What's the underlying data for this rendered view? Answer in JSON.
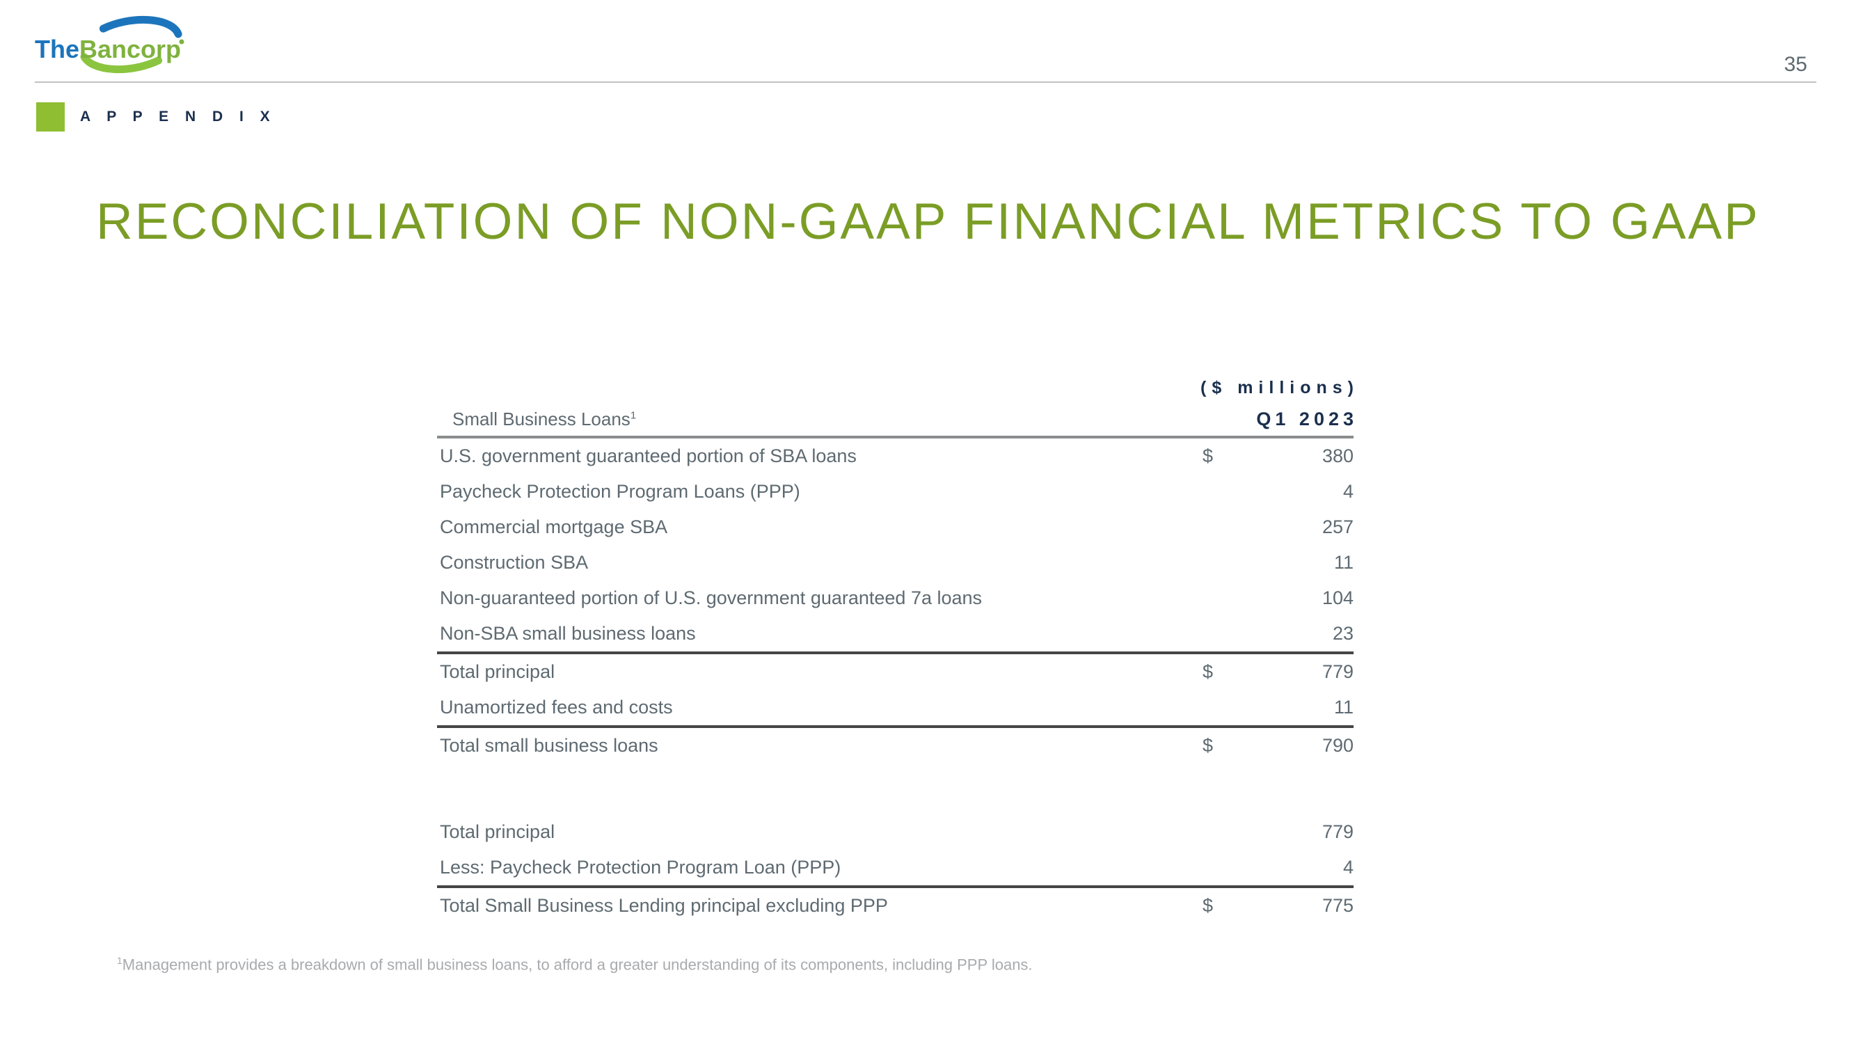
{
  "colors": {
    "accent_green": "#8fbe33",
    "logo_green": "#7fb23e",
    "logo_blue": "#1c75bc",
    "olive": "#7b9d26",
    "navy": "#1b2f4e",
    "gray": "#5e6a71",
    "rule_gray": "#8a8c8e",
    "rule_dark": "#454545",
    "footnote_gray": "#a8aaad"
  },
  "header": {
    "logo_word1": "The",
    "logo_word2": "Bancorp",
    "page_number": "35"
  },
  "section": {
    "label": "A P P E N D I X"
  },
  "title": "RECONCILIATION OF NON-GAAP FINANCIAL METRICS TO GAAP",
  "table": {
    "unit_label": "($ millions)",
    "row_header": "Small Business Loans",
    "row_header_superscript": "1",
    "period_label": "Q1 2023",
    "rows": [
      {
        "label": "U.S. government guaranteed portion of SBA loans",
        "dollar": "$",
        "value": "380"
      },
      {
        "label": "Paycheck Protection Program Loans (PPP)",
        "dollar": "",
        "value": "4"
      },
      {
        "label": "Commercial mortgage SBA",
        "dollar": "",
        "value": "257"
      },
      {
        "label": "Construction SBA",
        "dollar": "",
        "value": "11"
      },
      {
        "label": "Non-guaranteed portion of U.S. government guaranteed 7a loans",
        "dollar": "",
        "value": "104"
      },
      {
        "label": "Non-SBA small business loans",
        "dollar": "",
        "value": "23"
      },
      {
        "label": "Total principal",
        "dollar": "$",
        "value": "779",
        "rule_above": "dark"
      },
      {
        "label": "Unamortized fees and costs",
        "dollar": "",
        "value": "11"
      },
      {
        "label": "Total small business loans",
        "dollar": "$",
        "value": "790",
        "rule_above": "dark"
      },
      {
        "spacer": true
      },
      {
        "label": "Total principal",
        "dollar": "",
        "value": "779"
      },
      {
        "label": "Less: Paycheck Protection Program Loan (PPP)",
        "dollar": "",
        "value": "4"
      },
      {
        "label": "Total Small Business Lending principal excluding PPP",
        "dollar": "$",
        "value": "775",
        "rule_above": "dark"
      }
    ]
  },
  "footnote": {
    "superscript": "1",
    "text": "Management provides a breakdown of small business loans, to afford a greater understanding of its components, including PPP loans."
  }
}
